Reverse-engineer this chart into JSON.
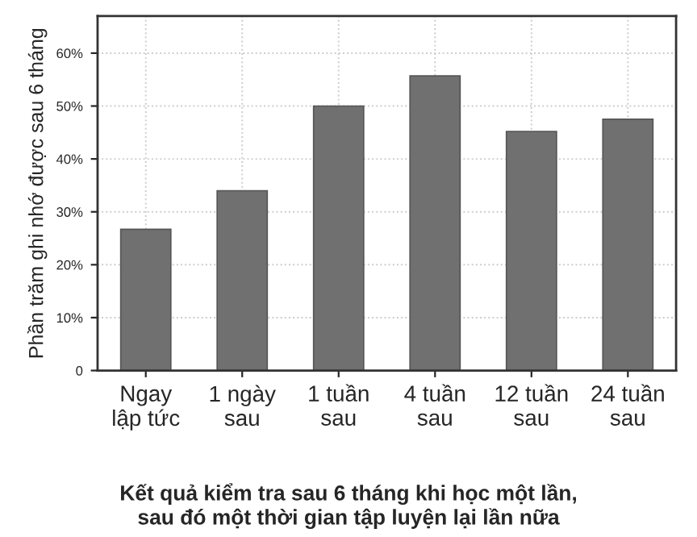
{
  "chart_data": {
    "type": "bar",
    "title": "Kết quả kiểm tra sau 6 tháng khi học một lần,\nsau đó một thời gian tập luyện lại lần nữa",
    "ylabel": "Phần trăm ghi nhớ được sau 6 tháng",
    "categories": [
      "Ngay\nlập tức",
      "1 ngày\nsau",
      "1 tuần\nsau",
      "4 tuần\nsau",
      "12 tuần\nsau",
      "24 tuần\nsau"
    ],
    "values": [
      26.7,
      34,
      50,
      55.7,
      45.2,
      47.5
    ],
    "color": "#707070",
    "ylim": [
      0,
      67
    ],
    "yticks": [
      {
        "value": 0,
        "label": "0"
      },
      {
        "value": 10,
        "label": "10%"
      },
      {
        "value": 20,
        "label": "20%"
      },
      {
        "value": 30,
        "label": "30%"
      },
      {
        "value": 40,
        "label": "40%"
      },
      {
        "value": 50,
        "label": "50%"
      },
      {
        "value": 60,
        "label": "60%"
      }
    ],
    "grid": true
  }
}
